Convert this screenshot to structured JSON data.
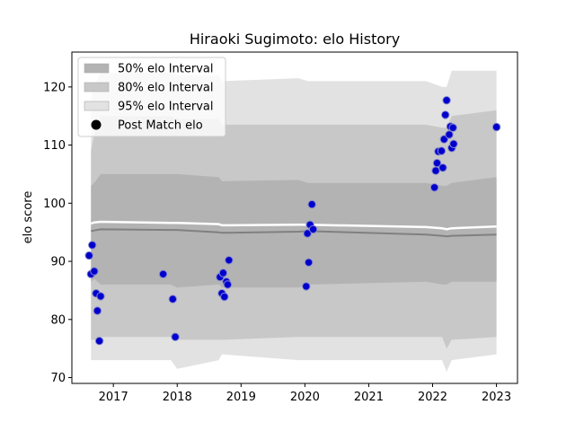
{
  "chart_data": {
    "type": "scatter",
    "title": "Hiraoki Sugimoto: elo History",
    "xlabel": "",
    "ylabel": "elo score",
    "xlim": [
      2016.35,
      2023.33
    ],
    "ylim": [
      69.0,
      126.0
    ],
    "x_ticks": [
      2017,
      2018,
      2019,
      2020,
      2021,
      2022,
      2023
    ],
    "x_tick_labels": [
      "2017",
      "2018",
      "2019",
      "2020",
      "2021",
      "2022",
      "2023"
    ],
    "y_ticks": [
      70,
      80,
      90,
      100,
      110,
      120
    ],
    "y_tick_labels": [
      "70",
      "80",
      "90",
      "100",
      "110",
      "120"
    ],
    "grid": false,
    "legend": {
      "placement": "top-left",
      "entries": [
        {
          "label": "50% elo Interval",
          "kind": "band",
          "color": "#b3b3b3"
        },
        {
          "label": "80% elo Interval",
          "kind": "band",
          "color": "#c8c8c8"
        },
        {
          "label": "95% elo Interval",
          "kind": "band",
          "color": "#e2e2e2"
        },
        {
          "label": "Post Match elo",
          "kind": "marker",
          "color": "#000000"
        }
      ]
    },
    "band_x": [
      2016.65,
      2016.7,
      2016.8,
      2017.9,
      2018.0,
      2018.65,
      2018.7,
      2019.9,
      2020.05,
      2021.9,
      2022.15,
      2022.22,
      2022.3,
      2023.0
    ],
    "bands": [
      {
        "name": "95% elo Interval",
        "color": "#e2e2e2",
        "upper": [
          118.0,
          120.0,
          122.5,
          122.5,
          122.0,
          122.0,
          121.0,
          121.5,
          121.0,
          121.0,
          120.0,
          120.0,
          122.8,
          122.8
        ],
        "lower": [
          73.0,
          73.0,
          73.0,
          73.0,
          71.5,
          73.0,
          74.0,
          73.0,
          73.0,
          73.0,
          73.0,
          71.0,
          73.0,
          74.0
        ]
      },
      {
        "name": "80% elo Interval",
        "color": "#c8c8c8",
        "upper": [
          109.0,
          112.0,
          115.0,
          115.0,
          114.5,
          114.5,
          113.5,
          113.5,
          113.5,
          113.5,
          113.0,
          113.0,
          115.0,
          116.0
        ],
        "lower": [
          76.5,
          76.5,
          77.0,
          77.0,
          76.5,
          76.5,
          76.5,
          77.0,
          77.0,
          77.0,
          77.0,
          75.0,
          76.5,
          77.0
        ]
      },
      {
        "name": "50% elo Interval",
        "color": "#b3b3b3",
        "upper": [
          103.0,
          103.5,
          105.0,
          105.0,
          105.0,
          104.5,
          103.8,
          104.0,
          103.5,
          103.5,
          103.0,
          103.0,
          103.5,
          104.5
        ],
        "lower": [
          86.5,
          87.0,
          86.0,
          86.0,
          85.5,
          86.0,
          85.5,
          85.5,
          86.0,
          86.5,
          86.0,
          86.0,
          86.5,
          86.5
        ]
      }
    ],
    "mean_line": {
      "color": "#808080",
      "y": [
        95.2,
        95.3,
        95.5,
        95.4,
        95.4,
        95.0,
        94.9,
        95.1,
        95.2,
        94.6,
        94.4,
        94.3,
        94.4,
        94.6
      ]
    },
    "upper_white_line": {
      "color": "#ffffff",
      "y": [
        96.5,
        96.7,
        96.8,
        96.6,
        96.6,
        96.4,
        96.2,
        96.3,
        96.3,
        95.9,
        95.7,
        95.5,
        95.7,
        96.0
      ]
    },
    "series": [
      {
        "name": "Post Match elo",
        "color": "#0000cc",
        "edge_color": "#8888cc",
        "points": [
          {
            "x": 2016.62,
            "y": 91.0
          },
          {
            "x": 2016.65,
            "y": 87.8
          },
          {
            "x": 2016.67,
            "y": 92.8
          },
          {
            "x": 2016.7,
            "y": 88.3
          },
          {
            "x": 2016.73,
            "y": 84.5
          },
          {
            "x": 2016.75,
            "y": 81.5
          },
          {
            "x": 2016.78,
            "y": 76.3
          },
          {
            "x": 2016.8,
            "y": 84.0
          },
          {
            "x": 2017.78,
            "y": 87.8
          },
          {
            "x": 2017.93,
            "y": 83.5
          },
          {
            "x": 2017.97,
            "y": 77.0
          },
          {
            "x": 2018.67,
            "y": 87.3
          },
          {
            "x": 2018.7,
            "y": 84.5
          },
          {
            "x": 2018.72,
            "y": 88.0
          },
          {
            "x": 2018.74,
            "y": 83.9
          },
          {
            "x": 2018.77,
            "y": 86.5
          },
          {
            "x": 2018.79,
            "y": 86.0
          },
          {
            "x": 2018.81,
            "y": 90.2
          },
          {
            "x": 2020.02,
            "y": 85.7
          },
          {
            "x": 2020.04,
            "y": 94.8
          },
          {
            "x": 2020.06,
            "y": 89.8
          },
          {
            "x": 2020.08,
            "y": 96.3
          },
          {
            "x": 2020.11,
            "y": 99.8
          },
          {
            "x": 2020.13,
            "y": 95.5
          },
          {
            "x": 2022.03,
            "y": 102.7
          },
          {
            "x": 2022.05,
            "y": 105.6
          },
          {
            "x": 2022.07,
            "y": 106.9
          },
          {
            "x": 2022.09,
            "y": 108.9
          },
          {
            "x": 2022.14,
            "y": 109.0
          },
          {
            "x": 2022.16,
            "y": 106.1
          },
          {
            "x": 2022.18,
            "y": 111.0
          },
          {
            "x": 2022.2,
            "y": 115.2
          },
          {
            "x": 2022.22,
            "y": 117.7
          },
          {
            "x": 2022.26,
            "y": 111.8
          },
          {
            "x": 2022.28,
            "y": 113.2
          },
          {
            "x": 2022.3,
            "y": 109.5
          },
          {
            "x": 2022.32,
            "y": 113.0
          },
          {
            "x": 2022.33,
            "y": 110.2
          },
          {
            "x": 2023.0,
            "y": 113.1
          }
        ]
      }
    ]
  }
}
